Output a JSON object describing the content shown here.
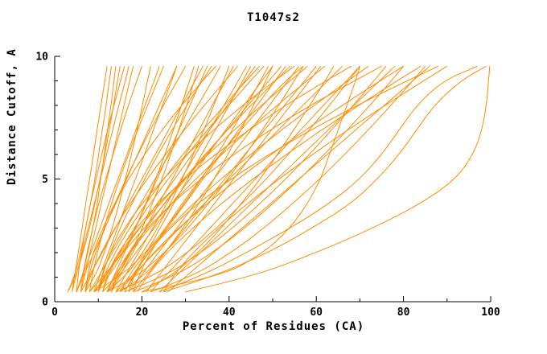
{
  "page": {
    "background": "#ffffff"
  },
  "chart_data": {
    "type": "line",
    "title": "T1047s2",
    "xlabel": "Percent of Residues (CA)",
    "ylabel": "Distance Cutoff, A",
    "xlim": [
      0,
      100
    ],
    "ylim": [
      0,
      10
    ],
    "x_major_ticks": [
      0,
      20,
      40,
      60,
      80,
      100
    ],
    "x_minor_step": 10,
    "y_major_ticks": [
      0,
      5,
      10
    ],
    "y_minor_step": 1,
    "grid": false,
    "legend": "none",
    "line_color": "#ff8c00",
    "axis_color": "#000000",
    "series_encoding": "each series is the list of x values (percent of residues) at the shared y_samples distance cutoffs",
    "y_samples": [
      0.4,
      1,
      2,
      3,
      4,
      5,
      6,
      7,
      8,
      9,
      9.6
    ],
    "series": [
      [
        4,
        4.5,
        5.4,
        6.3,
        7.1,
        8,
        8.9,
        9.7,
        10.6,
        11.5,
        12
      ],
      [
        5,
        6.3,
        7.6,
        8.7,
        9.8,
        10.5,
        11.4,
        12.1,
        12.9,
        13.6,
        14
      ],
      [
        3,
        4.8,
        6.5,
        8,
        9.2,
        10.4,
        11.5,
        12.5,
        13.5,
        14.4,
        15
      ],
      [
        6,
        6.4,
        7.4,
        8.7,
        10.1,
        11.7,
        13.4,
        15.1,
        16.9,
        18.8,
        20
      ],
      [
        4,
        4.8,
        6.3,
        7.7,
        9.1,
        10.5,
        11.9,
        13.3,
        14.7,
        16.2,
        17
      ],
      [
        7,
        9.2,
        11.4,
        13.2,
        14.8,
        16.2,
        17.6,
        18.9,
        20.1,
        21.3,
        22
      ],
      [
        5,
        6.2,
        8.3,
        10.4,
        12.4,
        14.5,
        16.6,
        18.6,
        20.7,
        22.8,
        24
      ],
      [
        8,
        8.5,
        9.8,
        11.3,
        13,
        14.9,
        16.9,
        19,
        21.3,
        23.6,
        25
      ],
      [
        3,
        4.5,
        5.9,
        7.1,
        8.2,
        9.2,
        10.1,
        10.9,
        11.8,
        12.5,
        13
      ],
      [
        6,
        6.8,
        8.1,
        9.4,
        10.7,
        12,
        13.3,
        14.6,
        15.9,
        17.2,
        18
      ],
      [
        5,
        6.5,
        9,
        11.5,
        14,
        16.5,
        19,
        21.5,
        24,
        26.5,
        28
      ],
      [
        7,
        7.7,
        9.4,
        11.5,
        13.8,
        16.3,
        19.1,
        21.9,
        24.9,
        28.1,
        30
      ],
      [
        9,
        12.4,
        15.8,
        18.5,
        20.9,
        23.2,
        25.3,
        27.2,
        29.1,
        30.9,
        32
      ],
      [
        6,
        7.8,
        10.9,
        13.9,
        16.9,
        20,
        23.1,
        26.1,
        29.1,
        32.2,
        34
      ],
      [
        10,
        10.8,
        12.7,
        15,
        17.7,
        20.6,
        23.7,
        26.9,
        30.3,
        33.8,
        36
      ],
      [
        8,
        10,
        13.2,
        16.5,
        19.7,
        23,
        26.3,
        29.5,
        32.8,
        36.1,
        38
      ],
      [
        12,
        16.1,
        20.2,
        23.6,
        26.5,
        29.2,
        31.8,
        34.2,
        36.5,
        38.7,
        40
      ],
      [
        7,
        8,
        10.6,
        13.8,
        17.3,
        21.2,
        25.4,
        29.7,
        34.3,
        39.1,
        42
      ],
      [
        14,
        16,
        19.2,
        22.5,
        25.7,
        29,
        32.3,
        35.5,
        38.8,
        42.1,
        44
      ],
      [
        9,
        11.4,
        15.4,
        19.5,
        23.5,
        27.5,
        31.5,
        35.5,
        39.6,
        43.6,
        46
      ],
      [
        11,
        12.1,
        14.8,
        18.2,
        21.9,
        26,
        30.4,
        35,
        39.9,
        44.9,
        48
      ],
      [
        15,
        20.2,
        25.3,
        29.5,
        33.1,
        36.6,
        39.7,
        42.7,
        45.6,
        48.4,
        50
      ],
      [
        8,
        10.9,
        15.7,
        20.5,
        25.2,
        30,
        34.8,
        39.5,
        44.3,
        49.1,
        52
      ],
      [
        13,
        14.2,
        17.2,
        21,
        25.1,
        29.6,
        34.5,
        39.6,
        45,
        50.6,
        54
      ],
      [
        10,
        10.6,
        12.7,
        16,
        20,
        24.9,
        30.3,
        36.4,
        43.1,
        50.4,
        55
      ],
      [
        16,
        17.9,
        21,
        24.2,
        27.3,
        30.5,
        33.7,
        36.8,
        40,
        43.1,
        45
      ],
      [
        12,
        13.5,
        16,
        18.5,
        21,
        23.5,
        26,
        28.5,
        31,
        33.5,
        35
      ],
      [
        17,
        19.5,
        23.8,
        28,
        32.2,
        36.5,
        40.8,
        45,
        49.2,
        53.5,
        56
      ],
      [
        10,
        11.4,
        14.9,
        19.3,
        24.2,
        29.5,
        35.2,
        41.2,
        47.4,
        54,
        58
      ],
      [
        18,
        20.7,
        25.3,
        29.9,
        34.4,
        39,
        43.6,
        48.1,
        52.7,
        57.3,
        60
      ],
      [
        12,
        13.5,
        17.2,
        21.7,
        26.8,
        32.3,
        38.3,
        44.5,
        51,
        57.8,
        62
      ],
      [
        20,
        26.5,
        32.9,
        38.2,
        42.8,
        47.1,
        51.1,
        54.8,
        58.5,
        62,
        64
      ],
      [
        14,
        17.4,
        23,
        28.7,
        34.3,
        40,
        45.7,
        51.3,
        56.9,
        62.6,
        66
      ],
      [
        11,
        11.7,
        14.5,
        18.6,
        23.7,
        29.8,
        36.8,
        44.5,
        52.9,
        62.2,
        68
      ],
      [
        22,
        25.1,
        30.4,
        35.6,
        40.8,
        46,
        51.2,
        56.4,
        61.6,
        66.9,
        70
      ],
      [
        15,
        16.7,
        20.9,
        26.1,
        31.8,
        38.1,
        44.9,
        52,
        59.5,
        67.2,
        72
      ],
      [
        13,
        13.8,
        16.8,
        21.2,
        26.8,
        33.5,
        41,
        49.4,
        58.6,
        68.7,
        75
      ],
      [
        24,
        27.5,
        33.4,
        39.3,
        45.1,
        51,
        56.9,
        62.7,
        68.6,
        74.5,
        78
      ],
      [
        16,
        17.9,
        22.6,
        28.4,
        34.9,
        42,
        49.6,
        57.5,
        65.9,
        74.6,
        80
      ],
      [
        19,
        20.9,
        25.7,
        31.6,
        38.2,
        45.4,
        53.1,
        61.2,
        69.7,
        78.5,
        84
      ],
      [
        17,
        17.9,
        21.3,
        26.4,
        32.8,
        40.4,
        49.1,
        58.7,
        69.3,
        80.8,
        88
      ],
      [
        25,
        26.9,
        31.7,
        37.6,
        44.2,
        51.4,
        59.1,
        67.2,
        75.7,
        84.6,
        90
      ],
      [
        24,
        33,
        44,
        54,
        63,
        70,
        75,
        79,
        83,
        89,
        97
      ],
      [
        25,
        36,
        49,
        59,
        68,
        74,
        79,
        83,
        87,
        93,
        99
      ],
      [
        30,
        45,
        60,
        73,
        84,
        92,
        96,
        98,
        99,
        99.5,
        99.8
      ],
      [
        20,
        38,
        48,
        54,
        58,
        61,
        63,
        65,
        67,
        69,
        70
      ],
      [
        5,
        5.3,
        6.1,
        7.1,
        8.2,
        9.5,
        10.8,
        12.1,
        13.6,
        15.1,
        16
      ],
      [
        9,
        10.2,
        12.3,
        14.4,
        16.4,
        18.5,
        20.6,
        22.6,
        24.7,
        26.8,
        28
      ],
      [
        11,
        14.3,
        17.5,
        20.1,
        22.4,
        24.6,
        26.6,
        28.4,
        30.3,
        32,
        33
      ],
      [
        7,
        7.4,
        8.8,
        11,
        13.7,
        16.9,
        20.6,
        24.6,
        29.1,
        33.9,
        37
      ],
      [
        13,
        14.8,
        17.9,
        20.9,
        23.9,
        27,
        30.1,
        33.1,
        36.1,
        39.2,
        41
      ],
      [
        10,
        11.1,
        13.8,
        17.2,
        20.9,
        25,
        29.4,
        34,
        38.9,
        43.9,
        47
      ],
      [
        15,
        17.5,
        21.6,
        25.8,
        29.9,
        34,
        38.1,
        42.2,
        46.4,
        50.5,
        53
      ],
      [
        18,
        19.1,
        21.9,
        25.4,
        29.2,
        33.4,
        37.9,
        42.7,
        47.7,
        52.9,
        57
      ],
      [
        21,
        23.6,
        27.9,
        32.3,
        36.6,
        41,
        45.4,
        49.7,
        54.1,
        58.4,
        61
      ],
      [
        12,
        14.5,
        18.6,
        22.8,
        26.9,
        31,
        35.1,
        39.2,
        43.4,
        47.5,
        50
      ],
      [
        18,
        27.2,
        36.2,
        43.6,
        50.1,
        56.2,
        61.8,
        67.1,
        72.3,
        77.2,
        80
      ],
      [
        22,
        31.3,
        40.5,
        48,
        54.6,
        60.8,
        66.5,
        71.9,
        77.1,
        82.1,
        85
      ],
      [
        16,
        24.9,
        33.6,
        40.8,
        47.1,
        53,
        58.4,
        63.5,
        68.5,
        73.2,
        76
      ],
      [
        26,
        29.9,
        36.4,
        43,
        49.5,
        56,
        62.5,
        69,
        75.6,
        82.1,
        86
      ],
      [
        14,
        22.3,
        30.5,
        37.1,
        43,
        48.5,
        53.6,
        58.4,
        63,
        67.4,
        70
      ],
      [
        12,
        18.7,
        25.2,
        30.6,
        35.3,
        39.7,
        43.8,
        47.6,
        51.4,
        54.9,
        57
      ],
      [
        9,
        14.9,
        20.8,
        25.5,
        29.7,
        33.6,
        37.3,
        40.7,
        44,
        47.2,
        49
      ]
    ]
  }
}
